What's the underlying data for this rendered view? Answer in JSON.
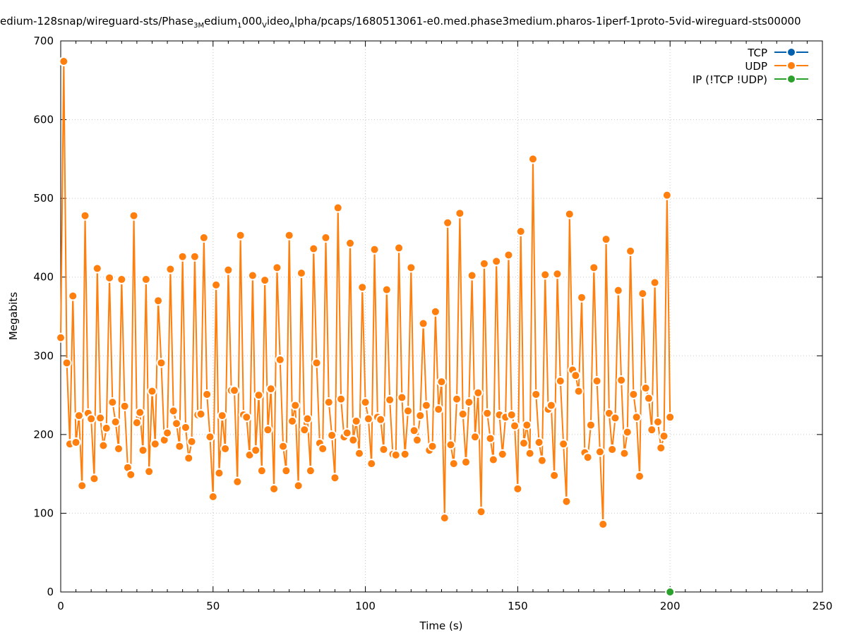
{
  "chart_data": {
    "type": "line",
    "title_pre": "edium-128snap/wireguard-sts/Phase",
    "title_sub1": "3M",
    "title_mid1": "edium",
    "title_sub2": "1",
    "title_mid2": "000",
    "title_sub3": "V",
    "title_mid3": "ideo",
    "title_sub4": "A",
    "title_post": "lpha/pcaps/1680513061-e0.med.phase3medium.pharos-1iperf-1proto-5vid-wireguard-sts00000",
    "xlabel": "Time (s)",
    "ylabel": "Megabits",
    "xlim": [
      0,
      250
    ],
    "ylim": [
      0,
      700
    ],
    "xticks": [
      "0",
      "50",
      "100",
      "150",
      "200",
      "250"
    ],
    "yticks": [
      "0",
      "100",
      "200",
      "300",
      "400",
      "500",
      "600",
      "700"
    ],
    "grid": true,
    "legend_position": "top-right",
    "colors": {
      "TCP": "#0060ad",
      "UDP": "#ff7f0e",
      "IP": "#2ca02c"
    },
    "series": [
      {
        "name": "TCP",
        "x": [],
        "y": []
      },
      {
        "name": "UDP",
        "x": [
          0,
          1,
          2,
          3,
          4,
          5,
          6,
          7,
          8,
          9,
          10,
          11,
          12,
          13,
          14,
          15,
          16,
          17,
          18,
          19,
          20,
          21,
          22,
          23,
          24,
          25,
          26,
          27,
          28,
          29,
          30,
          31,
          32,
          33,
          34,
          35,
          36,
          37,
          38,
          39,
          40,
          41,
          42,
          43,
          44,
          45,
          46,
          47,
          48,
          49,
          50,
          51,
          52,
          53,
          54,
          55,
          56,
          57,
          58,
          59,
          60,
          61,
          62,
          63,
          64,
          65,
          66,
          67,
          68,
          69,
          70,
          71,
          72,
          73,
          74,
          75,
          76,
          77,
          78,
          79,
          80,
          81,
          82,
          83,
          84,
          85,
          86,
          87,
          88,
          89,
          90,
          91,
          92,
          93,
          94,
          95,
          96,
          97,
          98,
          99,
          100,
          101,
          102,
          103,
          104,
          105,
          106,
          107,
          108,
          109,
          110,
          111,
          112,
          113,
          114,
          115,
          116,
          117,
          118,
          119,
          120,
          121,
          122,
          123,
          124,
          125,
          126,
          127,
          128,
          129,
          130,
          131,
          132,
          133,
          134,
          135,
          136,
          137,
          138,
          139,
          140,
          141,
          142,
          143,
          144,
          145,
          146,
          147,
          148,
          149,
          150,
          151,
          152,
          153,
          154,
          155,
          156,
          157,
          158,
          159,
          160,
          161,
          162,
          163,
          164,
          165,
          166,
          167,
          168,
          169,
          170,
          171,
          172,
          173,
          174,
          175,
          176,
          177,
          178,
          179,
          180,
          181,
          182,
          183,
          184,
          185,
          186,
          187,
          188,
          189,
          190,
          191,
          192,
          193,
          194,
          195,
          196,
          197,
          198,
          199,
          200
        ],
        "y": [
          323,
          674,
          291,
          188,
          376,
          190,
          224,
          135,
          478,
          227,
          220,
          144,
          411,
          221,
          186,
          208,
          399,
          241,
          216,
          182,
          397,
          236,
          158,
          149,
          478,
          215,
          228,
          180,
          397,
          153,
          255,
          188,
          370,
          291,
          193,
          202,
          410,
          230,
          214,
          185,
          426,
          209,
          170,
          191,
          426,
          225,
          226,
          450,
          251,
          197,
          121,
          390,
          151,
          224,
          182,
          409,
          256,
          256,
          140,
          453,
          225,
          222,
          174,
          402,
          180,
          250,
          154,
          396,
          206,
          258,
          131,
          412,
          295,
          185,
          154,
          453,
          217,
          237,
          135,
          405,
          206,
          220,
          154,
          436,
          291,
          189,
          182,
          450,
          241,
          199,
          145,
          488,
          245,
          197,
          202,
          443,
          193,
          217,
          176,
          387,
          241,
          220,
          163,
          435,
          222,
          219,
          181,
          384,
          244,
          175,
          174,
          437,
          247,
          175,
          230,
          412,
          205,
          193,
          224,
          341,
          237,
          180,
          185,
          356,
          232,
          267,
          94,
          469,
          187,
          163,
          245,
          481,
          226,
          165,
          241,
          402,
          197,
          253,
          102,
          417,
          227,
          195,
          168,
          420,
          225,
          175,
          222,
          428,
          225,
          211,
          131,
          458,
          189,
          212,
          176,
          550,
          251,
          190,
          167,
          403,
          232,
          237,
          148,
          404,
          268,
          188,
          115,
          480,
          282,
          275,
          255,
          374,
          177,
          171,
          212,
          412,
          268,
          178,
          86,
          448,
          227,
          181,
          221,
          383,
          269,
          176,
          203,
          433,
          251,
          222,
          147,
          379,
          259,
          246,
          206,
          393,
          216,
          183,
          198,
          504,
          222
        ]
      },
      {
        "name": "IP (!TCP  !UDP)",
        "x": [
          200
        ],
        "y": [
          0
        ]
      }
    ]
  }
}
